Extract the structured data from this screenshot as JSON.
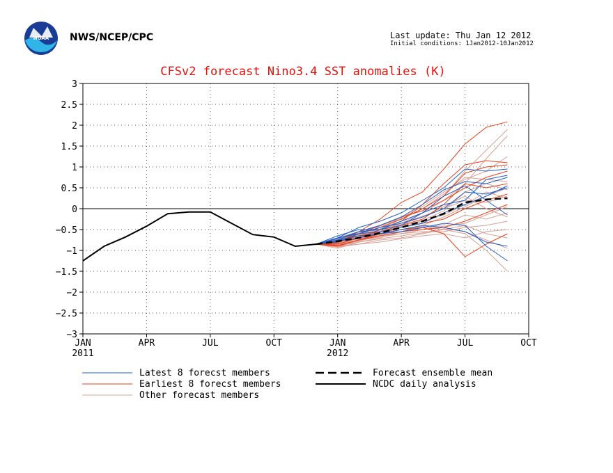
{
  "header": {
    "agency": "NWS/NCEP/CPC",
    "last_update": "Last update: Thu Jan 12 2012",
    "initial_conditions": "Initial conditions: 1Jan2012-10Jan2012"
  },
  "colors": {
    "title": "#e0120c",
    "latest": "#2060c8",
    "earliest": "#e8401c",
    "other": "#d8a096",
    "mean": "#000000",
    "analysis": "#000000"
  },
  "chart_data": {
    "type": "line",
    "title": "CFSv2 forecast Nino3.4 SST anomalies (K)",
    "xlabel": "",
    "ylabel": "",
    "ylim": [
      -3,
      3
    ],
    "yticks": [
      -3,
      -2.5,
      -2,
      -1.5,
      -1,
      -0.5,
      0,
      0.5,
      1,
      1.5,
      2,
      2.5,
      3
    ],
    "ytick_labels": [
      "−3",
      "−2.5",
      "−2",
      "−1.5",
      "−1",
      "−0.5",
      "0",
      "0.5",
      "1",
      "1.5",
      "2",
      "2.5",
      "3"
    ],
    "xlim": [
      "2011-01",
      "2012-10"
    ],
    "xtick_labels": [
      "JAN",
      "APR",
      "JUL",
      "OCT",
      "JAN",
      "APR",
      "JUL",
      "OCT"
    ],
    "xtick_year_labels": [
      "2011",
      "",
      "",
      "",
      "2012",
      "",
      "",
      ""
    ],
    "grid": true,
    "legend": [
      {
        "label": "Latest 8 forecst members",
        "style": "latest"
      },
      {
        "label": "Earliest 8 forecst members",
        "style": "earliest"
      },
      {
        "label": "Other forecast members",
        "style": "other"
      },
      {
        "label": "Forecast ensemble mean",
        "style": "mean"
      },
      {
        "label": "NCDC daily analysis",
        "style": "analysis"
      }
    ],
    "analysis": {
      "name": "NCDC daily analysis",
      "x": [
        "2011-01-01",
        "2011-02-01",
        "2011-03-01",
        "2011-04-01",
        "2011-05-01",
        "2011-06-01",
        "2011-07-01",
        "2011-08-01",
        "2011-09-01",
        "2011-10-01",
        "2011-11-01",
        "2011-12-01"
      ],
      "y": [
        -1.25,
        -0.9,
        -0.68,
        -0.42,
        -0.12,
        -0.08,
        -0.08,
        -0.35,
        -0.62,
        -0.68,
        -0.9,
        -0.85
      ]
    },
    "mean": {
      "name": "Forecast ensemble mean",
      "x": [
        "2011-12-01",
        "2012-01-01",
        "2012-02-01",
        "2012-03-01",
        "2012-04-01",
        "2012-05-01",
        "2012-06-01",
        "2012-07-01",
        "2012-08-01",
        "2012-09-01"
      ],
      "y": [
        -0.85,
        -0.78,
        -0.7,
        -0.58,
        -0.45,
        -0.3,
        -0.12,
        0.15,
        0.22,
        0.25
      ]
    },
    "members_x": [
      "2011-12-01",
      "2012-01-01",
      "2012-02-01",
      "2012-03-01",
      "2012-04-01",
      "2012-05-01",
      "2012-06-01",
      "2012-07-01",
      "2012-08-01",
      "2012-09-01"
    ],
    "latest_members": [
      [
        -0.85,
        -0.7,
        -0.45,
        -0.3,
        -0.1,
        0.2,
        0.5,
        0.95,
        0.9,
        0.95
      ],
      [
        -0.85,
        -0.75,
        -0.55,
        -0.4,
        -0.2,
        0.1,
        0.45,
        0.65,
        0.6,
        0.75
      ],
      [
        -0.85,
        -0.65,
        -0.5,
        -0.5,
        -0.4,
        -0.1,
        0.3,
        0.55,
        0.2,
        -0.15
      ],
      [
        -0.85,
        -0.8,
        -0.6,
        -0.55,
        -0.45,
        -0.35,
        -0.1,
        0.1,
        0.3,
        0.55
      ],
      [
        -0.85,
        -0.75,
        -0.65,
        -0.6,
        -0.5,
        -0.4,
        -0.45,
        -0.55,
        -0.8,
        -0.9
      ],
      [
        -0.85,
        -0.7,
        -0.6,
        -0.45,
        -0.35,
        -0.2,
        0.0,
        0.4,
        0.35,
        0.5
      ],
      [
        -0.85,
        -0.78,
        -0.7,
        -0.6,
        -0.55,
        -0.45,
        -0.35,
        -0.4,
        -0.9,
        -1.25
      ],
      [
        -0.85,
        -0.72,
        -0.55,
        -0.5,
        -0.3,
        -0.1,
        0.1,
        0.2,
        0.7,
        0.8
      ]
    ],
    "earliest_members": [
      [
        -0.85,
        -0.8,
        -0.55,
        -0.25,
        0.15,
        0.4,
        0.95,
        1.55,
        1.95,
        2.08
      ],
      [
        -0.85,
        -0.85,
        -0.7,
        -0.5,
        -0.3,
        0.1,
        0.6,
        1.05,
        1.15,
        1.1
      ],
      [
        -0.85,
        -0.9,
        -0.75,
        -0.6,
        -0.5,
        -0.45,
        -0.6,
        -1.15,
        -0.85,
        -0.6
      ],
      [
        -0.85,
        -0.8,
        -0.65,
        -0.55,
        -0.4,
        -0.25,
        0.1,
        0.6,
        0.5,
        0.6
      ],
      [
        -0.85,
        -0.82,
        -0.6,
        -0.45,
        -0.25,
        0.0,
        0.3,
        0.85,
        1.0,
        1.05
      ],
      [
        -0.85,
        -0.88,
        -0.75,
        -0.65,
        -0.55,
        -0.5,
        -0.45,
        -0.3,
        -0.1,
        0.1
      ],
      [
        -0.85,
        -0.78,
        -0.6,
        -0.4,
        -0.2,
        -0.05,
        0.2,
        0.5,
        0.75,
        0.9
      ],
      [
        -0.85,
        -0.85,
        -0.7,
        -0.6,
        -0.45,
        -0.35,
        -0.25,
        0.0,
        0.2,
        0.35
      ]
    ],
    "other_members": [
      [
        -0.85,
        -0.9,
        -0.85,
        -0.75,
        -0.7,
        -0.6,
        -0.5,
        -0.4,
        -0.6,
        -0.7
      ],
      [
        -0.85,
        -0.8,
        -0.7,
        -0.55,
        -0.35,
        -0.1,
        0.3,
        0.9,
        1.4,
        1.9
      ],
      [
        -0.85,
        -0.75,
        -0.6,
        -0.45,
        -0.3,
        -0.1,
        0.2,
        0.6,
        1.2,
        1.75
      ],
      [
        -0.85,
        -0.95,
        -0.8,
        -0.7,
        -0.55,
        -0.4,
        -0.2,
        0.05,
        0.3,
        0.5
      ],
      [
        -0.85,
        -0.82,
        -0.72,
        -0.62,
        -0.5,
        -0.42,
        -0.5,
        -0.6,
        -1.0,
        -1.5
      ],
      [
        -0.85,
        -0.7,
        -0.55,
        -0.4,
        -0.25,
        0.0,
        0.35,
        0.75,
        0.7,
        0.65
      ],
      [
        -0.85,
        -0.88,
        -0.78,
        -0.65,
        -0.6,
        -0.55,
        -0.55,
        -0.45,
        -0.4,
        -0.3
      ],
      [
        -0.85,
        -0.76,
        -0.66,
        -0.52,
        -0.45,
        -0.3,
        -0.15,
        0.1,
        0.4,
        0.25
      ],
      [
        -0.85,
        -0.92,
        -0.85,
        -0.8,
        -0.72,
        -0.65,
        -0.6,
        -0.7,
        -0.55,
        -0.5
      ],
      [
        -0.85,
        -0.78,
        -0.62,
        -0.48,
        -0.38,
        -0.2,
        0.05,
        0.3,
        0.0,
        -0.2
      ],
      [
        -0.85,
        -0.8,
        -0.68,
        -0.58,
        -0.42,
        -0.28,
        -0.05,
        0.4,
        0.6,
        0.45
      ],
      [
        -0.85,
        -0.86,
        -0.74,
        -0.64,
        -0.56,
        -0.46,
        -0.38,
        -0.15,
        -0.25,
        -0.1
      ],
      [
        -0.85,
        -0.74,
        -0.58,
        -0.42,
        -0.22,
        0.05,
        0.4,
        0.7,
        0.9,
        1.25
      ],
      [
        -0.85,
        -0.84,
        -0.76,
        -0.68,
        -0.6,
        -0.5,
        -0.42,
        -0.35,
        -0.15,
        0.05
      ],
      [
        -0.85,
        -0.79,
        -0.64,
        -0.5,
        -0.35,
        -0.18,
        0.0,
        0.2,
        0.15,
        0.3
      ],
      [
        -0.85,
        -0.9,
        -0.8,
        -0.72,
        -0.65,
        -0.58,
        -0.48,
        -0.55,
        -0.75,
        -0.95
      ]
    ]
  }
}
